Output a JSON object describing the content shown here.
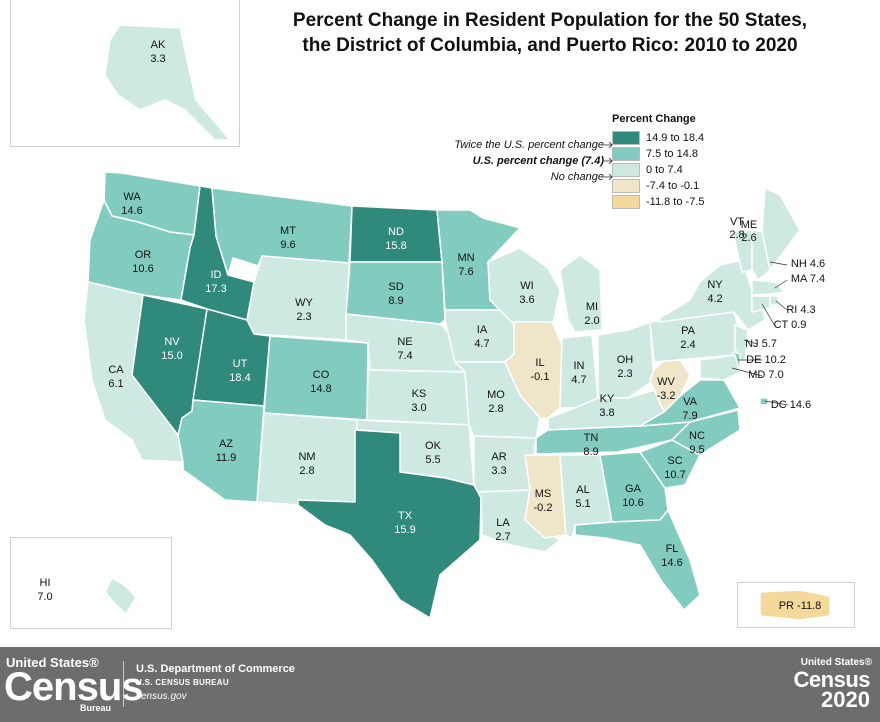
{
  "title_line1": "Percent Change in Resident Population for the 50 States,",
  "title_line2": "the District of Columbia, and Puerto Rico: 2010 to 2020",
  "legend": {
    "title": "Percent Change",
    "classes": [
      {
        "label": "14.9 to 18.4",
        "color": "#2f8a7c"
      },
      {
        "label": "7.5 to 14.8",
        "color": "#82ccbf"
      },
      {
        "label": "0 to 7.4",
        "color": "#cde9e2"
      },
      {
        "label": "-7.4 to -0.1",
        "color": "#efe5c8"
      },
      {
        "label": "-11.8 to -7.5",
        "color": "#f4d99a"
      }
    ],
    "notes": [
      {
        "text": "Twice the U.S. percent change"
      },
      {
        "text": "U.S. percent change (7.4)"
      },
      {
        "text": "No change"
      }
    ]
  },
  "states": [
    {
      "abbr": "WA",
      "value": "14.6"
    },
    {
      "abbr": "OR",
      "value": "10.6"
    },
    {
      "abbr": "CA",
      "value": "6.1"
    },
    {
      "abbr": "NV",
      "value": "15.0"
    },
    {
      "abbr": "ID",
      "value": "17.3"
    },
    {
      "abbr": "MT",
      "value": "9.6"
    },
    {
      "abbr": "WY",
      "value": "2.3"
    },
    {
      "abbr": "UT",
      "value": "18.4"
    },
    {
      "abbr": "AZ",
      "value": "11.9"
    },
    {
      "abbr": "CO",
      "value": "14.8"
    },
    {
      "abbr": "NM",
      "value": "2.8"
    },
    {
      "abbr": "ND",
      "value": "15.8"
    },
    {
      "abbr": "SD",
      "value": "8.9"
    },
    {
      "abbr": "NE",
      "value": "7.4"
    },
    {
      "abbr": "KS",
      "value": "3.0"
    },
    {
      "abbr": "OK",
      "value": "5.5"
    },
    {
      "abbr": "TX",
      "value": "15.9"
    },
    {
      "abbr": "MN",
      "value": "7.6"
    },
    {
      "abbr": "IA",
      "value": "4.7"
    },
    {
      "abbr": "MO",
      "value": "2.8"
    },
    {
      "abbr": "AR",
      "value": "3.3"
    },
    {
      "abbr": "LA",
      "value": "2.7"
    },
    {
      "abbr": "WI",
      "value": "3.6"
    },
    {
      "abbr": "IL",
      "value": "-0.1"
    },
    {
      "abbr": "MI",
      "value": "2.0"
    },
    {
      "abbr": "IN",
      "value": "4.7"
    },
    {
      "abbr": "OH",
      "value": "2.3"
    },
    {
      "abbr": "KY",
      "value": "3.8"
    },
    {
      "abbr": "TN",
      "value": "8.9"
    },
    {
      "abbr": "MS",
      "value": "-0.2"
    },
    {
      "abbr": "AL",
      "value": "5.1"
    },
    {
      "abbr": "GA",
      "value": "10.6"
    },
    {
      "abbr": "FL",
      "value": "14.6"
    },
    {
      "abbr": "SC",
      "value": "10.7"
    },
    {
      "abbr": "NC",
      "value": "9.5"
    },
    {
      "abbr": "VA",
      "value": "7.9"
    },
    {
      "abbr": "WV",
      "value": "-3.2"
    },
    {
      "abbr": "PA",
      "value": "2.4"
    },
    {
      "abbr": "NY",
      "value": "4.2"
    },
    {
      "abbr": "VT",
      "value": "2.8"
    },
    {
      "abbr": "ME",
      "value": "2.6"
    },
    {
      "abbr": "NH",
      "value": "4.6"
    },
    {
      "abbr": "MA",
      "value": "7.4"
    },
    {
      "abbr": "RI",
      "value": "4.3"
    },
    {
      "abbr": "CT",
      "value": "0.9"
    },
    {
      "abbr": "NJ",
      "value": "5.7"
    },
    {
      "abbr": "DE",
      "value": "10.2"
    },
    {
      "abbr": "MD",
      "value": "7.0"
    },
    {
      "abbr": "DC",
      "value": "14.6"
    },
    {
      "abbr": "AK",
      "value": "3.3"
    },
    {
      "abbr": "HI",
      "value": "7.0"
    },
    {
      "abbr": "PR",
      "value": "-11.8"
    }
  ],
  "footer": {
    "logo_top": "United States®",
    "logo_main": "Census",
    "logo_bureau": "Bureau",
    "department": "U.S. Department of Commerce",
    "bureau": "U.S. CENSUS BUREAU",
    "website": "census.gov",
    "census2020_top": "United States®",
    "census2020_main": "Census",
    "census2020_year": "2020"
  }
}
